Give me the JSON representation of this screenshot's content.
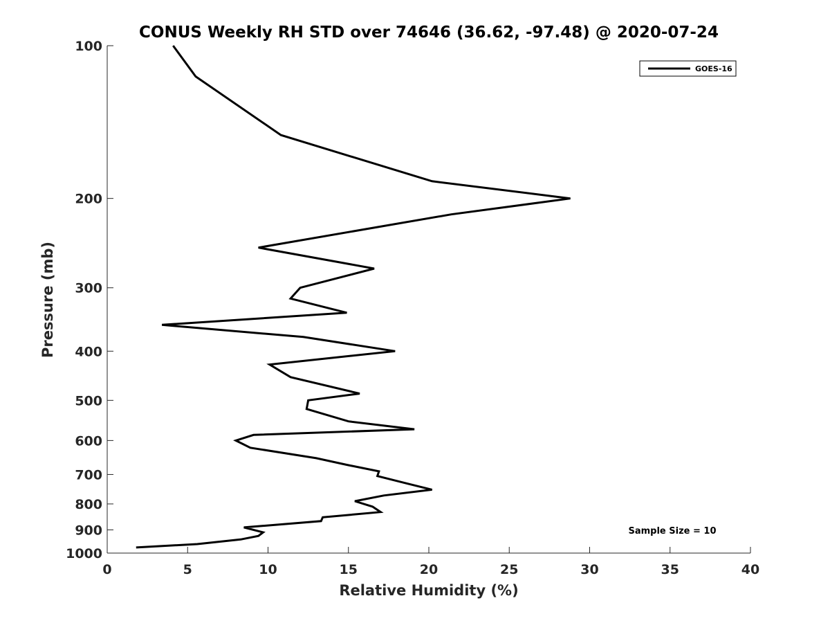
{
  "chart_data": {
    "type": "line",
    "title": "CONUS Weekly RH STD over 74646 (36.62, -97.48) @ 2020-07-24",
    "xlabel": "Relative Humidity (%)",
    "ylabel": "Pressure (mb)",
    "xlim": [
      0,
      40
    ],
    "ylim": [
      100,
      1000
    ],
    "y_scale": "log",
    "y_direction": "reversed",
    "grid": false,
    "legend_position": "top-right",
    "x_ticks": [
      0,
      5,
      10,
      15,
      20,
      25,
      30,
      35,
      40
    ],
    "y_ticks": [
      100,
      200,
      300,
      400,
      500,
      600,
      700,
      800,
      900,
      1000
    ],
    "annotation": "Sample Size = 10",
    "colors": {
      "line": "#000000",
      "axis": "#262626"
    },
    "series": [
      {
        "name": "GOES-16",
        "points": [
          [
            4.1,
            100
          ],
          [
            5.5,
            115
          ],
          [
            10.8,
            150
          ],
          [
            20.2,
            185
          ],
          [
            28.8,
            200
          ],
          [
            21.4,
            215
          ],
          [
            9.4,
            250
          ],
          [
            16.6,
            275
          ],
          [
            12.0,
            300
          ],
          [
            11.4,
            315
          ],
          [
            14.9,
            336
          ],
          [
            3.4,
            355
          ],
          [
            12.2,
            375
          ],
          [
            17.9,
            400
          ],
          [
            10.1,
            425
          ],
          [
            11.4,
            450
          ],
          [
            15.7,
            485
          ],
          [
            12.5,
            500
          ],
          [
            12.4,
            520
          ],
          [
            15.0,
            550
          ],
          [
            19.1,
            570
          ],
          [
            9.1,
            585
          ],
          [
            8.0,
            600
          ],
          [
            8.9,
            620
          ],
          [
            13.0,
            650
          ],
          [
            14.9,
            670
          ],
          [
            16.9,
            690
          ],
          [
            16.8,
            705
          ],
          [
            18.7,
            730
          ],
          [
            20.2,
            750
          ],
          [
            17.2,
            770
          ],
          [
            15.4,
            790
          ],
          [
            16.5,
            810
          ],
          [
            17.0,
            830
          ],
          [
            13.4,
            850
          ],
          [
            13.3,
            865
          ],
          [
            8.5,
            890
          ],
          [
            9.7,
            910
          ],
          [
            9.4,
            925
          ],
          [
            8.3,
            940
          ],
          [
            5.6,
            960
          ],
          [
            1.8,
            975
          ]
        ]
      }
    ]
  }
}
